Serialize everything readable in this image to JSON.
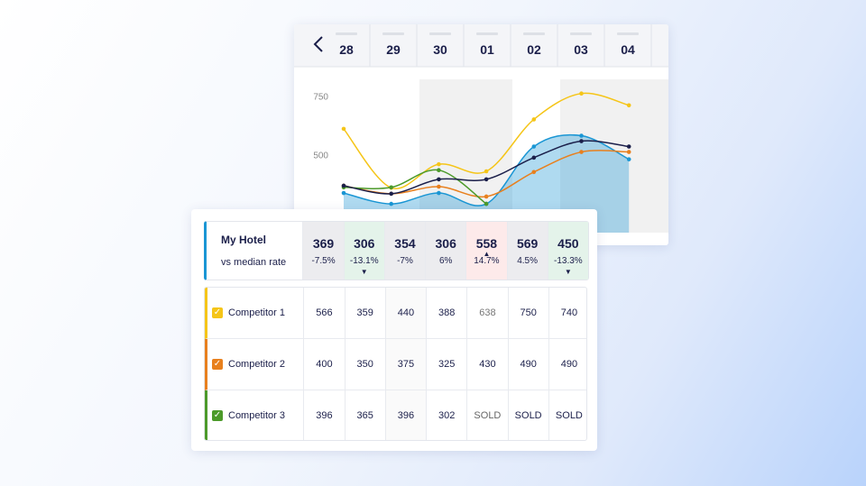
{
  "chart_data": {
    "type": "line",
    "categories": [
      "28",
      "29",
      "30",
      "01",
      "02",
      "03",
      "04"
    ],
    "ylim": [
      170,
      820
    ],
    "yticks": [
      500,
      750
    ],
    "series": [
      {
        "color": "#1a96d4",
        "area": true,
        "values": [
          338,
          292,
          338,
          292,
          535,
          581,
          481
        ]
      },
      {
        "color": "#f5c518",
        "values": [
          610,
          360,
          460,
          430,
          650,
          760,
          710
        ]
      },
      {
        "color": "#e8801e",
        "values": [
          369,
          335,
          365,
          323,
          427,
          512,
          512
        ]
      },
      {
        "color": "#4c9a2a",
        "values": [
          362,
          362,
          435,
          292,
          null,
          null,
          null
        ]
      },
      {
        "color": "#1b1f4a",
        "values": [
          369,
          335,
          396,
          396,
          488,
          558,
          535
        ]
      }
    ]
  },
  "table": {
    "hotel": {
      "name": "My Hotel",
      "subtitle": "vs median rate",
      "rates": [
        369,
        306,
        354,
        306,
        558,
        569,
        450
      ],
      "diffs": [
        "-7.5%",
        "-13.1%",
        "-7%",
        "6%",
        "14.7%",
        "4.5%",
        "-13.3%"
      ]
    },
    "competitors": [
      {
        "name": "Competitor 1",
        "color": "#f5c518",
        "rates": [
          566,
          359,
          440,
          388,
          638,
          750,
          740
        ]
      },
      {
        "name": "Competitor 2",
        "color": "#e8801e",
        "rates": [
          400,
          350,
          375,
          325,
          430,
          490,
          490
        ]
      },
      {
        "name": "Competitor 3",
        "color": "#4c9a2a",
        "rates": [
          396,
          365,
          396,
          302,
          "SOLD",
          "SOLD",
          "SOLD"
        ]
      }
    ]
  }
}
